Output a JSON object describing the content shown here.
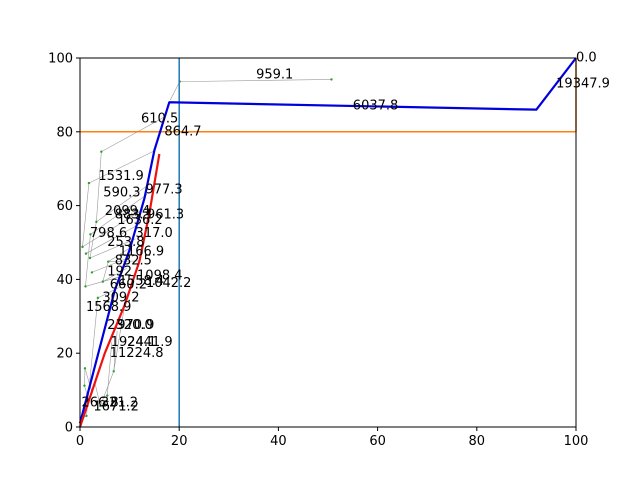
{
  "chart_data": {
    "type": "line",
    "title": "",
    "xlabel": "",
    "ylabel": "",
    "xlim": [
      0,
      100
    ],
    "ylim": [
      0,
      100
    ],
    "xticks": [
      0,
      20,
      40,
      60,
      80,
      100
    ],
    "yticks": [
      0,
      20,
      40,
      60,
      80,
      100
    ],
    "grid": false,
    "reference_lines": [
      {
        "orientation": "vertical",
        "x": 20,
        "color": "#1f77b4"
      },
      {
        "orientation": "horizontal",
        "y": 80,
        "x_range": [
          0,
          100
        ],
        "color": "#ff7f0e"
      },
      {
        "orientation": "vertical",
        "x": 100,
        "y_range": [
          80,
          100
        ],
        "color": "#ff7f0e"
      }
    ],
    "series": [
      {
        "color": "#0000dd",
        "points": [
          [
            0,
            1
          ],
          [
            7,
            37
          ],
          [
            10,
            48
          ],
          [
            13,
            62
          ],
          [
            15,
            75
          ],
          [
            18,
            88
          ],
          [
            92,
            86
          ],
          [
            100,
            100
          ]
        ]
      },
      {
        "color": "#ee1111",
        "points": [
          [
            0,
            0
          ],
          [
            5,
            20
          ],
          [
            9,
            33
          ],
          [
            12,
            45
          ],
          [
            14,
            58
          ],
          [
            16,
            74
          ]
        ]
      }
    ],
    "tree_nodes": [
      [
        20.1,
        93.6
      ],
      [
        50.7,
        94.2
      ],
      [
        4.3,
        74.6
      ],
      [
        1.8,
        66.1
      ],
      [
        3.3,
        55.6
      ],
      [
        2.1,
        52.2
      ],
      [
        0.5,
        48.8
      ],
      [
        1.2,
        47.0
      ],
      [
        2.0,
        45.8
      ],
      [
        5.7,
        44.8
      ],
      [
        2.4,
        41.9
      ],
      [
        4.6,
        39.4
      ],
      [
        1.1,
        38.1
      ],
      [
        3.6,
        35.0
      ],
      [
        1.0,
        15.9
      ],
      [
        0.9,
        11.2
      ],
      [
        6.8,
        15.1
      ],
      [
        5.5,
        8.5
      ],
      [
        4.1,
        5.7
      ],
      [
        1.3,
        3.0
      ]
    ],
    "tree_edges": [
      [
        18.2,
        88.6,
        20.1,
        93.6
      ],
      [
        20.1,
        93.6,
        50.7,
        94.2
      ],
      [
        17.0,
        84.0,
        4.3,
        74.6
      ],
      [
        15.2,
        75.0,
        1.8,
        66.1
      ],
      [
        14.2,
        66.0,
        3.3,
        55.6
      ],
      [
        13.5,
        63.0,
        2.1,
        52.2
      ],
      [
        12.8,
        59.0,
        0.5,
        48.8
      ],
      [
        12.0,
        55.0,
        1.2,
        47.0
      ],
      [
        11.2,
        51.0,
        2.0,
        45.8
      ],
      [
        10.6,
        49.0,
        5.7,
        44.8
      ],
      [
        10.0,
        46.0,
        2.4,
        41.9
      ],
      [
        9.4,
        43.0,
        4.6,
        39.4
      ],
      [
        8.8,
        41.0,
        1.1,
        38.1
      ],
      [
        8.2,
        38.0,
        3.6,
        35.0
      ],
      [
        2.5,
        9.0,
        1.0,
        15.9
      ],
      [
        1.8,
        7.0,
        0.9,
        11.2
      ],
      [
        7.5,
        26.0,
        6.8,
        15.1
      ],
      [
        6.4,
        23.0,
        5.5,
        8.5
      ],
      [
        3.0,
        12.0,
        4.1,
        5.7
      ],
      [
        0.6,
        2.5,
        1.3,
        3.0
      ],
      [
        4.3,
        74.6,
        3.3,
        55.6
      ],
      [
        1.8,
        66.1,
        0.5,
        48.8
      ],
      [
        3.3,
        55.6,
        2.0,
        45.8
      ],
      [
        2.1,
        52.2,
        1.1,
        38.1
      ],
      [
        5.7,
        44.8,
        4.6,
        39.4
      ],
      [
        6.8,
        15.1,
        4.1,
        5.7
      ],
      [
        1.0,
        15.9,
        0.9,
        11.2
      ],
      [
        3.6,
        35.0,
        1.3,
        3.0
      ],
      [
        9.0,
        33.0,
        6.8,
        15.1
      ],
      [
        12.0,
        45.0,
        5.7,
        44.8
      ]
    ],
    "annotations": [
      {
        "text": "959.1",
        "x": 35.5,
        "y": 94.5
      },
      {
        "text": "0.0",
        "x": 100.0,
        "y": 99.0
      },
      {
        "text": "19347.9",
        "x": 96.0,
        "y": 92.0
      },
      {
        "text": "6037.8",
        "x": 55.0,
        "y": 86.0
      },
      {
        "text": "610.5",
        "x": 12.3,
        "y": 82.5
      },
      {
        "text": "864.7",
        "x": 17.0,
        "y": 79.0
      },
      {
        "text": "1531.9",
        "x": 3.7,
        "y": 67.0
      },
      {
        "text": "590.3",
        "x": 4.7,
        "y": 62.5
      },
      {
        "text": "977.3",
        "x": 13.2,
        "y": 63.3
      },
      {
        "text": "2099.4",
        "x": 5.0,
        "y": 57.5
      },
      {
        "text": "883.3",
        "x": 7.0,
        "y": 56.5
      },
      {
        "text": "961.3",
        "x": 13.5,
        "y": 56.5
      },
      {
        "text": "1636.2",
        "x": 7.5,
        "y": 55.0
      },
      {
        "text": "798.6",
        "x": 2.0,
        "y": 51.5
      },
      {
        "text": "317.0",
        "x": 11.2,
        "y": 51.5
      },
      {
        "text": "253.8",
        "x": 5.5,
        "y": 49.0
      },
      {
        "text": "1166.9",
        "x": 7.8,
        "y": 46.5
      },
      {
        "text": "832.5",
        "x": 7.0,
        "y": 44.0
      },
      {
        "text": "192",
        "x": 5.5,
        "y": 41.0
      },
      {
        "text": "1558.4",
        "x": 7.8,
        "y": 38.5
      },
      {
        "text": "1098.4",
        "x": 11.5,
        "y": 40.0
      },
      {
        "text": "660.2",
        "x": 6.0,
        "y": 37.5
      },
      {
        "text": "1042.2",
        "x": 13.3,
        "y": 38.0
      },
      {
        "text": "309.2",
        "x": 4.5,
        "y": 34.0
      },
      {
        "text": "1568.9",
        "x": 1.2,
        "y": 31.5
      },
      {
        "text": "2320.0",
        "x": 5.5,
        "y": 26.5
      },
      {
        "text": "970.9",
        "x": 7.5,
        "y": 26.5
      },
      {
        "text": "1924.1",
        "x": 6.2,
        "y": 22.0
      },
      {
        "text": "2441.9",
        "x": 9.5,
        "y": 22.0
      },
      {
        "text": "11224.8",
        "x": 6.0,
        "y": 19.0
      },
      {
        "text": "266.8",
        "x": 0.3,
        "y": 5.5
      },
      {
        "text": "321.2",
        "x": 4.2,
        "y": 5.5
      },
      {
        "text": "1671.2",
        "x": 2.7,
        "y": 4.5
      }
    ]
  }
}
